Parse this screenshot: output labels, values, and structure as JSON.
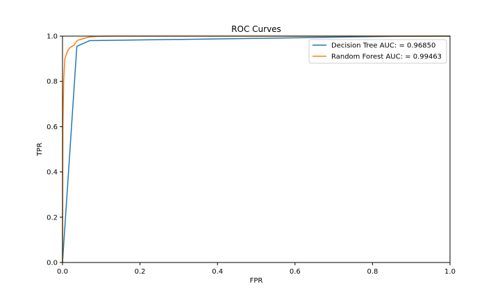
{
  "chart_data": {
    "type": "line",
    "title": "ROC Curves",
    "xlabel": "FPR",
    "ylabel": "TPR",
    "xlim": [
      0,
      1
    ],
    "ylim": [
      0,
      1
    ],
    "xticks": [
      "0.0",
      "0.2",
      "0.4",
      "0.6",
      "0.8",
      "1.0"
    ],
    "yticks": [
      "0.0",
      "0.2",
      "0.4",
      "0.6",
      "0.8",
      "1.0"
    ],
    "grid": false,
    "legend_position": "top-right",
    "series": [
      {
        "name": "Decision Tree AUC:  = 0.96850",
        "color": "#1f77b4",
        "points": [
          [
            0,
            0
          ],
          [
            0.037,
            0.955
          ],
          [
            0.07,
            0.98
          ],
          [
            0.5,
            0.99
          ],
          [
            0.85,
            0.999
          ],
          [
            1,
            1
          ]
        ]
      },
      {
        "name": "Random Forest AUC:  = 0.99463",
        "color": "#ff7f0e",
        "points": [
          [
            0,
            0
          ],
          [
            0.001,
            0.6
          ],
          [
            0.003,
            0.8
          ],
          [
            0.006,
            0.9
          ],
          [
            0.01,
            0.92
          ],
          [
            0.015,
            0.94
          ],
          [
            0.02,
            0.95
          ],
          [
            0.025,
            0.955
          ],
          [
            0.03,
            0.96
          ],
          [
            0.035,
            0.975
          ],
          [
            0.04,
            0.982
          ],
          [
            0.05,
            0.987
          ],
          [
            0.06,
            0.992
          ],
          [
            0.07,
            0.996
          ],
          [
            0.09,
            0.999
          ],
          [
            0.12,
            1
          ],
          [
            1,
            1
          ]
        ]
      }
    ]
  }
}
